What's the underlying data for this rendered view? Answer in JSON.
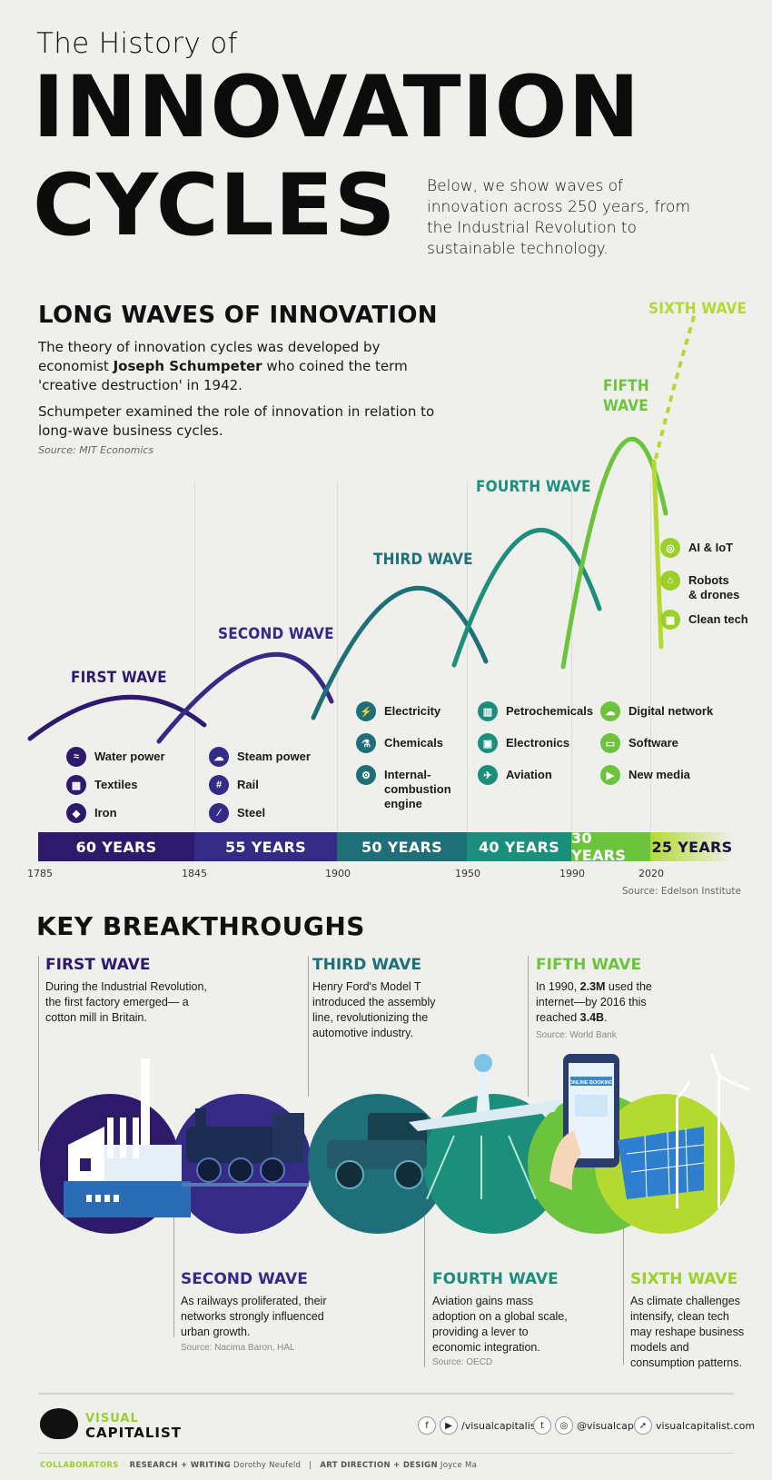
{
  "header": {
    "title_small": "The History of",
    "title_line1": "INNOVATION",
    "title_line2": "CYCLES",
    "intro": "Below, we show waves of innovation across 250 years, from the Industrial Revolution to sustainable technology."
  },
  "long_waves": {
    "title": "LONG WAVES OF INNOVATION",
    "p1_before": "The theory of innovation cycles was developed by economist ",
    "p1_bold": "Joseph Schumpeter",
    "p1_after": " who coined the term 'creative destruction' in 1942.",
    "p2": "Schumpeter examined the role of innovation in relation to long-wave business cycles.",
    "source": "Source: MIT Economics"
  },
  "colors": {
    "wave1": "#2d1a6b",
    "wave2": "#352a85",
    "wave3": "#1e6f78",
    "wave4": "#1b8f7b",
    "wave5": "#6cc43c",
    "wave6": "#b4da32"
  },
  "waves": [
    {
      "label": "FIRST WAVE",
      "techs": [
        {
          "name": "Water power",
          "icon": "water-icon"
        },
        {
          "name": "Textiles",
          "icon": "textile-icon"
        },
        {
          "name": "Iron",
          "icon": "iron-icon"
        }
      ],
      "duration": "60 YEARS"
    },
    {
      "label": "SECOND WAVE",
      "techs": [
        {
          "name": "Steam power",
          "icon": "steam-icon"
        },
        {
          "name": "Rail",
          "icon": "rail-icon"
        },
        {
          "name": "Steel",
          "icon": "steel-icon"
        }
      ],
      "duration": "55 YEARS"
    },
    {
      "label": "THIRD WAVE",
      "techs": [
        {
          "name": "Electricity",
          "icon": "electricity-icon"
        },
        {
          "name": "Chemicals",
          "icon": "chemicals-icon"
        },
        {
          "name": "Internal-\ncombustion\nengine",
          "icon": "engine-icon"
        }
      ],
      "duration": "50 YEARS"
    },
    {
      "label": "FOURTH WAVE",
      "techs": [
        {
          "name": "Petrochemicals",
          "icon": "factory-icon"
        },
        {
          "name": "Electronics",
          "icon": "chip-icon"
        },
        {
          "name": "Aviation",
          "icon": "plane-icon"
        }
      ],
      "duration": "40 YEARS"
    },
    {
      "label": "FIFTH\nWAVE",
      "techs": [
        {
          "name": "Digital network",
          "icon": "network-icon"
        },
        {
          "name": "Software",
          "icon": "software-icon"
        },
        {
          "name": "New media",
          "icon": "media-icon"
        }
      ],
      "duration": "30 YEARS"
    },
    {
      "label": "SIXTH WAVE",
      "techs": [
        {
          "name": "AI & IoT",
          "icon": "ai-icon"
        },
        {
          "name": "Robots\n& drones",
          "icon": "robot-icon"
        },
        {
          "name": "Clean tech",
          "icon": "solar-icon"
        }
      ],
      "duration": "25 YEARS"
    }
  ],
  "timeline_years": [
    "1785",
    "1845",
    "1900",
    "1950",
    "1990",
    "2020"
  ],
  "timeline_source": "Source: Edelson Institute",
  "key_breakthroughs": {
    "title": "KEY BREAKTHROUGHS",
    "first": {
      "head": "FIRST WAVE",
      "text": "During the Industrial Revolution, the first factory emerged— a cotton mill in Britain."
    },
    "third": {
      "head": "THIRD WAVE",
      "text": "Henry Ford's Model T introduced the assembly line, revolutionizing the automotive industry."
    },
    "fifth": {
      "head": "FIFTH WAVE",
      "t1": "In 1990, ",
      "b1": "2.3M",
      "t2": " used the internet—by 2016 this reached ",
      "b2": "3.4B",
      "t3": ".",
      "source": "Source: World Bank"
    },
    "second": {
      "head": "SECOND WAVE",
      "text": "As railways proliferated, their networks strongly influenced urban growth.",
      "source": "Source: Nacima Baron, HAL"
    },
    "fourth": {
      "head": "FOURTH WAVE",
      "text": "Aviation gains mass adoption on a global scale, providing a lever to economic integration.",
      "source": "Source: OECD"
    },
    "sixth": {
      "head": "SIXTH WAVE",
      "text": "As climate challenges intensify, clean tech may reshape business models and consumption patterns."
    },
    "illustration_text": "ONLINE BOOKING"
  },
  "footer": {
    "logo_line1": "VISUAL",
    "logo_line2": "CAPITALIST",
    "fb_handle": "/visualcapitalist",
    "tw_handle": "@visualcap",
    "site": "visualcapitalist.com",
    "collab_label": "COLLABORATORS",
    "research_label": "RESEARCH + WRITING",
    "research_name": "Dorothy Neufeld",
    "art_label": "ART DIRECTION + DESIGN",
    "art_name": "Joyce Ma"
  }
}
